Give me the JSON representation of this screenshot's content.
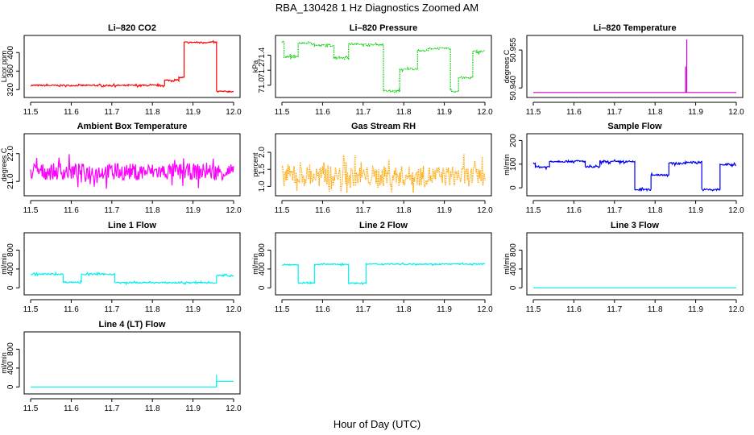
{
  "figure": {
    "title": "RBA_130428  1 Hz Diagnostics Zoomed AM",
    "xlabel": "Hour of Day (UTC)"
  },
  "chart_data": [
    {
      "id": "co2",
      "type": "line",
      "title": "Li–820 CO2",
      "ylabel": "Licor ppm",
      "color": "#ff0000",
      "xlim": [
        11.5,
        12.0
      ],
      "ylim": [
        310,
        430
      ],
      "xticks": [
        "11.5",
        "11.6",
        "11.7",
        "11.8",
        "11.9",
        "12.0"
      ],
      "yticks": [
        {
          "value": 320,
          "label": "320"
        },
        {
          "value": 360,
          "label": "360"
        },
        {
          "value": 400,
          "label": "400"
        }
      ],
      "noise": 1.5,
      "style": "line",
      "segments": [
        [
          11.5,
          11.83,
          329
        ],
        [
          11.83,
          11.865,
          340
        ],
        [
          11.865,
          11.878,
          346
        ],
        [
          11.878,
          11.958,
          422
        ],
        [
          11.958,
          12.0,
          316
        ]
      ]
    },
    {
      "id": "pressure",
      "type": "line",
      "title": "Li–820 Pressure",
      "ylabel": "kPa",
      "color": "#00cc00",
      "xlim": [
        11.5,
        12.0
      ],
      "ylim": [
        70.88,
        71.62
      ],
      "xticks": [
        "11.5",
        "11.6",
        "11.7",
        "11.8",
        "11.9",
        "12.0"
      ],
      "yticks": [
        {
          "value": 71.0,
          "label": "71.0"
        },
        {
          "value": 71.2,
          "label": "71.2"
        },
        {
          "value": 71.4,
          "label": "71.4"
        }
      ],
      "noise": 0.012,
      "style": "dotted",
      "segments": [
        [
          11.5,
          11.505,
          71.57
        ],
        [
          11.505,
          11.54,
          71.38
        ],
        [
          11.54,
          11.58,
          71.56
        ],
        [
          11.58,
          11.628,
          71.53
        ],
        [
          11.628,
          11.664,
          71.37
        ],
        [
          11.664,
          11.7,
          71.55
        ],
        [
          11.7,
          11.75,
          71.54
        ],
        [
          11.75,
          11.79,
          70.92
        ],
        [
          11.79,
          11.81,
          71.21
        ],
        [
          11.81,
          11.834,
          71.22
        ],
        [
          11.834,
          11.86,
          71.46
        ],
        [
          11.86,
          11.915,
          71.49
        ],
        [
          11.915,
          11.935,
          70.92
        ],
        [
          11.935,
          11.97,
          71.1
        ],
        [
          11.97,
          12.0,
          71.45
        ]
      ]
    },
    {
      "id": "licor_temp",
      "type": "line",
      "title": "Li–820 Temperature",
      "ylabel": "degrees C",
      "color": "#cc00cc",
      "xlim": [
        11.5,
        12.0
      ],
      "ylim": [
        50.9375,
        50.9595
      ],
      "xticks": [
        "11.5",
        "11.6",
        "11.7",
        "11.8",
        "11.9",
        "12.0"
      ],
      "yticks": [
        {
          "value": 50.94,
          "label": "50.940"
        },
        {
          "value": 50.955,
          "label": "50.955"
        }
      ],
      "noise": 0,
      "style": "line",
      "segments": [
        [
          11.5,
          12.0,
          50.9382
        ]
      ],
      "spikes": [
        [
          11.875,
          50.9485
        ],
        [
          11.878,
          50.9592
        ]
      ]
    },
    {
      "id": "box_temp",
      "type": "line",
      "title": "Ambient Box Temperature",
      "ylabel": "degrees C",
      "color": "#ff00ff",
      "xlim": [
        11.5,
        12.0
      ],
      "ylim": [
        20.6,
        22.6
      ],
      "xticks": [
        "11.5",
        "11.6",
        "11.7",
        "11.8",
        "11.9",
        "12.0"
      ],
      "yticks": [
        {
          "value": 21.0,
          "label": "21.0"
        },
        {
          "value": 22.0,
          "label": "22.0"
        }
      ],
      "noise": 0.3,
      "style": "line",
      "segments": [
        [
          11.5,
          12.0,
          21.35
        ]
      ]
    },
    {
      "id": "rh",
      "type": "line",
      "title": "Gas Stream RH",
      "ylabel": "percent",
      "color": "#ffa500",
      "xlim": [
        11.5,
        12.0
      ],
      "ylim": [
        0.82,
        2.45
      ],
      "xticks": [
        "11.5",
        "11.6",
        "11.7",
        "11.8",
        "11.9",
        "12.0"
      ],
      "yticks": [
        {
          "value": 1.0,
          "label": "1.0"
        },
        {
          "value": 1.5,
          "label": "1.5"
        },
        {
          "value": 2.0,
          "label": "2.0"
        }
      ],
      "noise": 0.3,
      "style": "dotted",
      "segments": [
        [
          11.5,
          12.0,
          1.3
        ]
      ]
    },
    {
      "id": "sample_flow",
      "type": "line",
      "title": "Sample Flow",
      "ylabel": "ml/min",
      "color": "#0000ee",
      "xlim": [
        11.5,
        12.0
      ],
      "ylim": [
        -20,
        215
      ],
      "xticks": [
        "11.5",
        "11.6",
        "11.7",
        "11.8",
        "11.9",
        "12.0"
      ],
      "yticks": [
        {
          "value": 0,
          "label": "0"
        },
        {
          "value": 100,
          "label": "100"
        },
        {
          "value": 200,
          "label": "200"
        }
      ],
      "noise": 4,
      "style": "line",
      "segments": [
        [
          11.5,
          11.505,
          105
        ],
        [
          11.505,
          11.54,
          88
        ],
        [
          11.54,
          11.628,
          112
        ],
        [
          11.628,
          11.664,
          88
        ],
        [
          11.664,
          11.75,
          110
        ],
        [
          11.75,
          11.79,
          -8
        ],
        [
          11.79,
          11.834,
          55
        ],
        [
          11.834,
          11.875,
          103
        ],
        [
          11.875,
          11.915,
          108
        ],
        [
          11.915,
          11.96,
          -8
        ],
        [
          11.96,
          12.0,
          98
        ]
      ]
    },
    {
      "id": "line1",
      "type": "line",
      "title": "Line 1 Flow",
      "ylabel": "ml/min",
      "color": "#00eeee",
      "xlim": [
        11.5,
        12.0
      ],
      "ylim": [
        -80,
        1100
      ],
      "xticks": [
        "11.5",
        "11.6",
        "11.7",
        "11.8",
        "11.9",
        "12.0"
      ],
      "yticks": [
        {
          "value": 0,
          "label": "0"
        },
        {
          "value": 400,
          "label": "400"
        },
        {
          "value": 800,
          "label": "800"
        }
      ],
      "noise": 15,
      "style": "line",
      "segments": [
        [
          11.5,
          11.58,
          290
        ],
        [
          11.58,
          11.625,
          120
        ],
        [
          11.625,
          11.707,
          290
        ],
        [
          11.707,
          11.958,
          110
        ],
        [
          11.958,
          12.0,
          260
        ]
      ]
    },
    {
      "id": "line2",
      "type": "line",
      "title": "Line 2 Flow",
      "ylabel": "ml/min",
      "color": "#00eeee",
      "xlim": [
        11.5,
        12.0
      ],
      "ylim": [
        -80,
        1100
      ],
      "xticks": [
        "11.5",
        "11.6",
        "11.7",
        "11.8",
        "11.9",
        "12.0"
      ],
      "yticks": [
        {
          "value": 0,
          "label": "0"
        },
        {
          "value": 400,
          "label": "400"
        },
        {
          "value": 800,
          "label": "800"
        }
      ],
      "noise": 12,
      "style": "line",
      "segments": [
        [
          11.5,
          11.54,
          490
        ],
        [
          11.54,
          11.58,
          100
        ],
        [
          11.58,
          11.664,
          500
        ],
        [
          11.664,
          11.707,
          100
        ],
        [
          11.707,
          12.0,
          505
        ]
      ]
    },
    {
      "id": "line3",
      "type": "line",
      "title": "Line 3 Flow",
      "ylabel": "ml/min",
      "color": "#00eeee",
      "xlim": [
        11.5,
        12.0
      ],
      "ylim": [
        -80,
        1100
      ],
      "xticks": [
        "11.5",
        "11.6",
        "11.7",
        "11.8",
        "11.9",
        "12.0"
      ],
      "yticks": [
        {
          "value": 0,
          "label": "0"
        },
        {
          "value": 400,
          "label": "400"
        },
        {
          "value": 800,
          "label": "800"
        }
      ],
      "noise": 0,
      "style": "line",
      "segments": [
        [
          11.5,
          12.0,
          0
        ]
      ]
    },
    {
      "id": "line4",
      "type": "line",
      "title": "Line 4 (LT) Flow",
      "ylabel": "ml/min",
      "color": "#00eeee",
      "xlim": [
        11.5,
        12.0
      ],
      "ylim": [
        -80,
        1100
      ],
      "xticks": [
        "11.5",
        "11.6",
        "11.7",
        "11.8",
        "11.9",
        "12.0"
      ],
      "yticks": [
        {
          "value": 0,
          "label": "0"
        },
        {
          "value": 400,
          "label": "400"
        },
        {
          "value": 800,
          "label": "800"
        }
      ],
      "noise": 0,
      "style": "line",
      "segments": [
        [
          11.5,
          11.958,
          0
        ],
        [
          11.958,
          12.0,
          120
        ]
      ],
      "spikes": [
        [
          11.958,
          260
        ]
      ]
    }
  ]
}
